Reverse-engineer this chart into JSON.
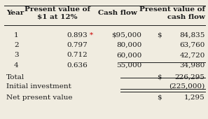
{
  "bg_color": "#f0ece0",
  "text_color": "#1a1a1a",
  "asterisk_color": "#cc0000",
  "font_size": 7.5,
  "header_font_size": 7.5,
  "rows": [
    [
      "1",
      "0.893",
      "*",
      "$95,000",
      "$",
      "84,835"
    ],
    [
      "2",
      "0.797",
      "",
      "80,000",
      "",
      "63,760"
    ],
    [
      "3",
      "0.712",
      "",
      "60,000",
      "",
      "42,720"
    ],
    [
      "4",
      "0.636",
      "",
      "55,000",
      "",
      "34,980"
    ]
  ],
  "total_label": "Total",
  "total_dollar": "$",
  "total_value": "226,295",
  "investment_label": "Initial investment",
  "investment_value": "(225,000)",
  "npv_label": "Net present value",
  "npv_dollar": "$",
  "npv_value": "1,295"
}
